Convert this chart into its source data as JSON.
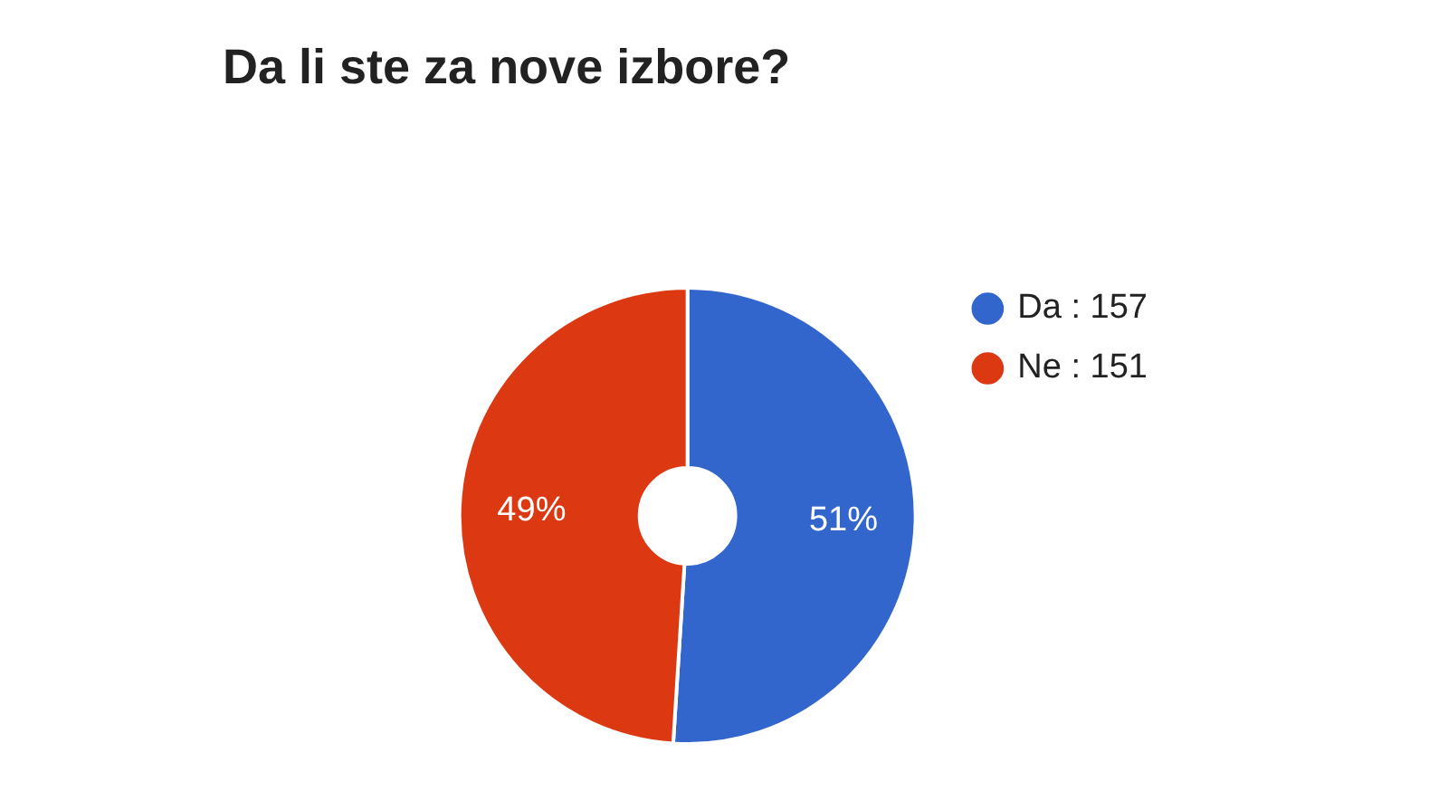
{
  "chart_data": {
    "type": "donut",
    "title": "Da li ste za nove izbore?",
    "categories": [
      "Da : 157",
      "Ne : 151"
    ],
    "values": [
      51,
      49
    ],
    "colors": [
      "#3366cc",
      "#dc3912"
    ],
    "value_labels": [
      "51%",
      "49%"
    ],
    "legend": "top right"
  }
}
